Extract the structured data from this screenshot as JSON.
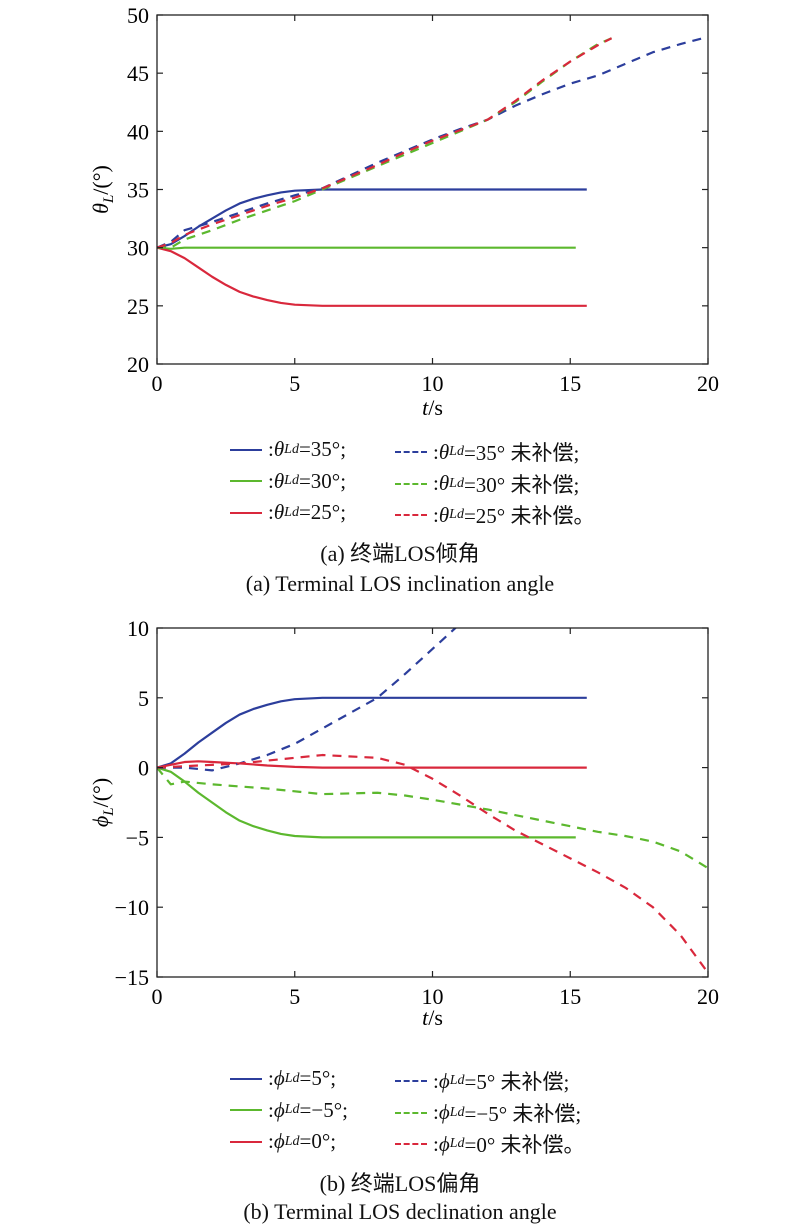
{
  "colors": {
    "blue": "#2c3e9c",
    "green": "#5cb82e",
    "red": "#d9283c",
    "axis": "#222222"
  },
  "chart_data": [
    {
      "type": "line",
      "title": "",
      "xlabel": "t/s",
      "xlabel_italic": "t",
      "xlabel_rest": "/s",
      "ylabel_symbol": "θ",
      "ylabel_sub": "L",
      "ylabel_rest": "/(°)",
      "xlim": [
        0,
        20
      ],
      "ylim": [
        20,
        50
      ],
      "xticks": [
        0,
        5,
        10,
        15,
        20
      ],
      "yticks": [
        20,
        25,
        30,
        35,
        40,
        45,
        50
      ],
      "xtick_labels": [
        "0",
        "5",
        "10",
        "15",
        "20"
      ],
      "ytick_labels": [
        "20",
        "25",
        "30",
        "35",
        "40",
        "45",
        "50"
      ],
      "series": [
        {
          "name": "θLd=35°",
          "color": "blue",
          "dash": false,
          "points": [
            [
              0,
              30
            ],
            [
              0.5,
              30.3
            ],
            [
              1,
              31.0
            ],
            [
              1.5,
              31.8
            ],
            [
              2,
              32.5
            ],
            [
              2.5,
              33.2
            ],
            [
              3,
              33.8
            ],
            [
              3.5,
              34.2
            ],
            [
              4,
              34.5
            ],
            [
              4.5,
              34.75
            ],
            [
              5,
              34.9
            ],
            [
              6,
              35
            ],
            [
              15.6,
              35
            ]
          ]
        },
        {
          "name": "θLd=30°",
          "color": "green",
          "dash": false,
          "points": [
            [
              0,
              30
            ],
            [
              0.5,
              29.9
            ],
            [
              1,
              30
            ],
            [
              15.2,
              30
            ]
          ]
        },
        {
          "name": "θLd=25°",
          "color": "red",
          "dash": false,
          "points": [
            [
              0,
              30
            ],
            [
              0.5,
              29.7
            ],
            [
              1,
              29.1
            ],
            [
              1.5,
              28.3
            ],
            [
              2,
              27.5
            ],
            [
              2.5,
              26.8
            ],
            [
              3,
              26.2
            ],
            [
              3.5,
              25.8
            ],
            [
              4,
              25.5
            ],
            [
              4.5,
              25.25
            ],
            [
              5,
              25.1
            ],
            [
              6,
              25
            ],
            [
              15.6,
              25
            ]
          ]
        },
        {
          "name": "θLd=35° 未补偿",
          "color": "blue",
          "dash": true,
          "points": [
            [
              0,
              30
            ],
            [
              0.5,
              30.5
            ],
            [
              1,
              31.5
            ],
            [
              2,
              32.2
            ],
            [
              3,
              33
            ],
            [
              4,
              33.8
            ],
            [
              5,
              34.5
            ],
            [
              6,
              35.1
            ],
            [
              7,
              36.2
            ],
            [
              8,
              37.3
            ],
            [
              9,
              38.3
            ],
            [
              10,
              39.3
            ],
            [
              11,
              40.2
            ],
            [
              12,
              41
            ],
            [
              13,
              42.2
            ],
            [
              14,
              43.2
            ],
            [
              15,
              44.1
            ],
            [
              16,
              44.8
            ],
            [
              17,
              45.8
            ],
            [
              18,
              46.8
            ],
            [
              19,
              47.5
            ],
            [
              19.8,
              48
            ]
          ]
        },
        {
          "name": "θLd=30° 未补偿",
          "color": "green",
          "dash": true,
          "points": [
            [
              0,
              30
            ],
            [
              0.5,
              30
            ],
            [
              1,
              30.7
            ],
            [
              2,
              31.5
            ],
            [
              3,
              32.4
            ],
            [
              4,
              33.2
            ],
            [
              5,
              34
            ],
            [
              6,
              35
            ],
            [
              7,
              36
            ],
            [
              8,
              37
            ],
            [
              9,
              38
            ],
            [
              10,
              39
            ],
            [
              11,
              40
            ],
            [
              12,
              41
            ],
            [
              13,
              42.5
            ],
            [
              14,
              44.3
            ],
            [
              15,
              46
            ],
            [
              16,
              47.5
            ],
            [
              16.5,
              48
            ]
          ]
        },
        {
          "name": "θLd=25° 未补偿",
          "color": "red",
          "dash": true,
          "points": [
            [
              0,
              30
            ],
            [
              0.5,
              30.4
            ],
            [
              1,
              31.1
            ],
            [
              2,
              32
            ],
            [
              3,
              32.8
            ],
            [
              4,
              33.6
            ],
            [
              5,
              34.3
            ],
            [
              6,
              35.1
            ],
            [
              7,
              36.1
            ],
            [
              8,
              37.1
            ],
            [
              9,
              38.2
            ],
            [
              10,
              39.2
            ],
            [
              11,
              40.1
            ],
            [
              12,
              41
            ],
            [
              13,
              42.6
            ],
            [
              14,
              44.4
            ],
            [
              15,
              46
            ],
            [
              16,
              47.4
            ],
            [
              16.5,
              48
            ]
          ]
        }
      ],
      "legend": [
        {
          "prefix": ": ",
          "symbol": "θ",
          "sub": "Ld",
          "value": "=35°;",
          "color": "blue",
          "dash": false
        },
        {
          "prefix": ": ",
          "symbol": "θ",
          "sub": "Ld",
          "value": "=35° 未补偿;",
          "color": "blue",
          "dash": true
        },
        {
          "prefix": ": ",
          "symbol": "θ",
          "sub": "Ld",
          "value": "=30°;",
          "color": "green",
          "dash": false
        },
        {
          "prefix": ": ",
          "symbol": "θ",
          "sub": "Ld",
          "value": "=30° 未补偿;",
          "color": "green",
          "dash": true
        },
        {
          "prefix": ": ",
          "symbol": "θ",
          "sub": "Ld",
          "value": "=25°;",
          "color": "red",
          "dash": false
        },
        {
          "prefix": ": ",
          "symbol": "θ",
          "sub": "Ld",
          "value": "=25° 未补偿。",
          "color": "red",
          "dash": true
        }
      ],
      "caption_cn": "(a) 终端LOS倾角",
      "caption_en": "(a) Terminal LOS inclination angle"
    },
    {
      "type": "line",
      "title": "",
      "xlabel": "t/s",
      "xlabel_italic": "t",
      "xlabel_rest": "/s",
      "ylabel_symbol": "ϕ",
      "ylabel_sub": "L",
      "ylabel_rest": "/(°)",
      "xlim": [
        0,
        20
      ],
      "ylim": [
        -15,
        10
      ],
      "xticks": [
        0,
        5,
        10,
        15,
        20
      ],
      "yticks": [
        -15,
        -10,
        -5,
        0,
        5,
        10
      ],
      "xtick_labels": [
        "0",
        "5",
        "10",
        "15",
        "20"
      ],
      "ytick_labels": [
        "−15",
        "−10",
        "−5",
        "0",
        "5",
        "10"
      ],
      "series": [
        {
          "name": "ϕLd=5°",
          "color": "blue",
          "dash": false,
          "points": [
            [
              0,
              0
            ],
            [
              0.5,
              0.3
            ],
            [
              1,
              1.0
            ],
            [
              1.5,
              1.8
            ],
            [
              2,
              2.5
            ],
            [
              2.5,
              3.2
            ],
            [
              3,
              3.8
            ],
            [
              3.5,
              4.2
            ],
            [
              4,
              4.5
            ],
            [
              4.5,
              4.75
            ],
            [
              5,
              4.9
            ],
            [
              6,
              5
            ],
            [
              15.6,
              5
            ]
          ]
        },
        {
          "name": "ϕLd=−5°",
          "color": "green",
          "dash": false,
          "points": [
            [
              0,
              0
            ],
            [
              0.5,
              -0.3
            ],
            [
              1,
              -1.0
            ],
            [
              1.5,
              -1.8
            ],
            [
              2,
              -2.5
            ],
            [
              2.5,
              -3.2
            ],
            [
              3,
              -3.8
            ],
            [
              3.5,
              -4.2
            ],
            [
              4,
              -4.5
            ],
            [
              4.5,
              -4.75
            ],
            [
              5,
              -4.9
            ],
            [
              6,
              -5
            ],
            [
              15.2,
              -5
            ]
          ]
        },
        {
          "name": "ϕLd=0°",
          "color": "red",
          "dash": false,
          "points": [
            [
              0,
              0
            ],
            [
              0.5,
              0.2
            ],
            [
              1,
              0.4
            ],
            [
              1.5,
              0.45
            ],
            [
              2,
              0.4
            ],
            [
              3,
              0.3
            ],
            [
              4,
              0.15
            ],
            [
              5,
              0.05
            ],
            [
              6,
              0
            ],
            [
              15.6,
              0
            ]
          ]
        },
        {
          "name": "ϕLd=5° 未补偿",
          "color": "blue",
          "dash": true,
          "points": [
            [
              0,
              0
            ],
            [
              1,
              0
            ],
            [
              2,
              -0.2
            ],
            [
              3,
              0.3
            ],
            [
              4,
              0.9
            ],
            [
              5,
              1.7
            ],
            [
              6,
              2.8
            ],
            [
              7,
              3.9
            ],
            [
              8,
              5
            ],
            [
              9,
              6.7
            ],
            [
              10,
              8.5
            ],
            [
              11,
              10.3
            ]
          ]
        },
        {
          "name": "ϕLd=−5° 未补偿",
          "color": "green",
          "dash": true,
          "points": [
            [
              0,
              0
            ],
            [
              0.5,
              -1.2
            ],
            [
              1,
              -1.0
            ],
            [
              2,
              -1.2
            ],
            [
              4,
              -1.5
            ],
            [
              6,
              -1.9
            ],
            [
              8,
              -1.8
            ],
            [
              9,
              -2
            ],
            [
              10,
              -2.3
            ],
            [
              12,
              -3
            ],
            [
              14,
              -3.8
            ],
            [
              16,
              -4.6
            ],
            [
              17,
              -4.9
            ],
            [
              18,
              -5.3
            ],
            [
              19,
              -6
            ],
            [
              20,
              -7.2
            ]
          ]
        },
        {
          "name": "ϕLd=0° 未补偿",
          "color": "red",
          "dash": true,
          "points": [
            [
              0,
              0
            ],
            [
              1,
              0.1
            ],
            [
              3,
              0.3
            ],
            [
              5,
              0.7
            ],
            [
              6,
              0.9
            ],
            [
              8,
              0.7
            ],
            [
              9,
              0.2
            ],
            [
              10,
              -0.8
            ],
            [
              11,
              -2
            ],
            [
              12,
              -3.3
            ],
            [
              13,
              -4.5
            ],
            [
              14,
              -5.5
            ],
            [
              15,
              -6.5
            ],
            [
              16,
              -7.5
            ],
            [
              17,
              -8.6
            ],
            [
              18,
              -10
            ],
            [
              19,
              -12
            ],
            [
              20,
              -14.7
            ]
          ]
        }
      ],
      "legend": [
        {
          "prefix": ": ",
          "symbol": "ϕ",
          "sub": "Ld",
          "value": "=5°;",
          "color": "blue",
          "dash": false
        },
        {
          "prefix": ": ",
          "symbol": "ϕ",
          "sub": "Ld",
          "value": "=5° 未补偿;",
          "color": "blue",
          "dash": true
        },
        {
          "prefix": ": ",
          "symbol": "ϕ",
          "sub": "Ld",
          "value": "=−5°;",
          "color": "green",
          "dash": false
        },
        {
          "prefix": ": ",
          "symbol": "ϕ",
          "sub": "Ld",
          "value": "=−5° 未补偿;",
          "color": "green",
          "dash": true
        },
        {
          "prefix": ": ",
          "symbol": "ϕ",
          "sub": "Ld",
          "value": "=0°;",
          "color": "red",
          "dash": false
        },
        {
          "prefix": ": ",
          "symbol": "ϕ",
          "sub": "Ld",
          "value": "=0° 未补偿。",
          "color": "red",
          "dash": true
        }
      ],
      "caption_cn": "(b) 终端LOS偏角",
      "caption_en": "(b) Terminal LOS declination angle"
    }
  ]
}
